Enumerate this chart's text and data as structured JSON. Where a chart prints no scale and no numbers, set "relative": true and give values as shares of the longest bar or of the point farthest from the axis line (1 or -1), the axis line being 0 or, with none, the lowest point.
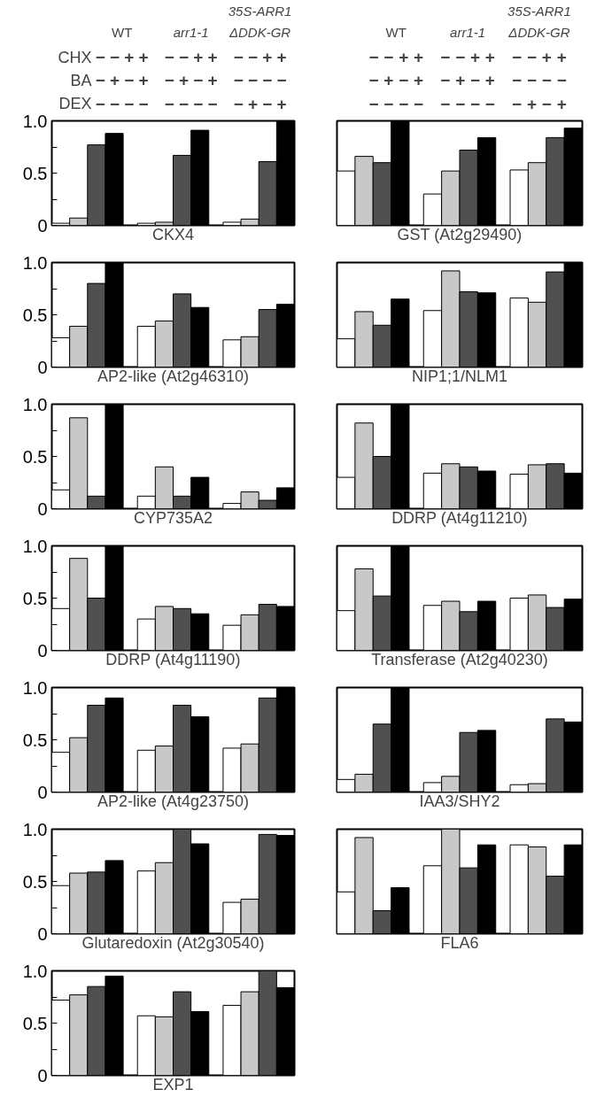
{
  "chart_data": [
    {
      "type": "bar",
      "xlabel": "CKX4",
      "categories": [
        null,
        null,
        null,
        null,
        null,
        null,
        null,
        null,
        null,
        null,
        null,
        null
      ],
      "values": [
        0.02,
        0.07,
        0.77,
        0.88,
        0.02,
        0.03,
        0.67,
        0.91,
        0.03,
        0.06,
        0.61,
        1.0
      ],
      "colors": [
        "#ffffff",
        "#c8c8c8",
        "#505050",
        "#000000",
        "#ffffff",
        "#c8c8c8",
        "#505050",
        "#000000",
        "#ffffff",
        "#c8c8c8",
        "#505050",
        "#000000"
      ],
      "ylim": [
        0,
        1
      ],
      "yticks": [
        0,
        {
          "value": 0.25,
          "label": null
        },
        0.5,
        {
          "value": 0.75,
          "label": null
        },
        {
          "value": 1,
          "label": "1.0"
        }
      ],
      "tick_labels": "y",
      "grid": false,
      "annotations": [
        "WT",
        "arr1-1",
        "35S-ARR1",
        "ΔDDK-GR",
        "CHX",
        "BA",
        "DEX",
        "− − + + − − + + − − + +",
        "− + − + − + − + − − − −",
        "− − − − − − − − − + − +"
      ]
    },
    {
      "type": "bar",
      "xlabel": "GST (At2g29490)",
      "categories": [
        null,
        null,
        null,
        null,
        null,
        null,
        null,
        null,
        null,
        null,
        null,
        null
      ],
      "values": [
        0.52,
        0.66,
        0.6,
        1.0,
        0.3,
        0.52,
        0.72,
        0.84,
        0.53,
        0.6,
        0.84,
        0.93
      ],
      "colors": [
        "#ffffff",
        "#c8c8c8",
        "#505050",
        "#000000",
        "#ffffff",
        "#c8c8c8",
        "#505050",
        "#000000",
        "#ffffff",
        "#c8c8c8",
        "#505050",
        "#000000"
      ],
      "relative": true,
      "tick_labels": false,
      "grid": false,
      "annotations": [
        "WT",
        "arr1-1",
        "35S-ARR1",
        "ΔDDK-GR",
        "− − + + − − + + − − + +",
        "− + − + − + − + − − − −",
        "− − − − − − − − − + − +"
      ]
    },
    {
      "type": "bar",
      "xlabel": "AP2-like (At2g46310)",
      "categories": [
        null,
        null,
        null,
        null,
        null,
        null,
        null,
        null,
        null,
        null,
        null,
        null
      ],
      "values": [
        0.28,
        0.39,
        0.8,
        1.0,
        0.39,
        0.44,
        0.7,
        0.57,
        0.26,
        0.29,
        0.55,
        0.6
      ],
      "colors": [
        "#ffffff",
        "#c8c8c8",
        "#505050",
        "#000000",
        "#ffffff",
        "#c8c8c8",
        "#505050",
        "#000000",
        "#ffffff",
        "#c8c8c8",
        "#505050",
        "#000000"
      ],
      "ylim": [
        0,
        1
      ],
      "yticks": [
        0,
        {
          "value": 0.25,
          "label": null
        },
        0.5,
        {
          "value": 0.75,
          "label": null
        },
        {
          "value": 1,
          "label": "1.0"
        }
      ],
      "tick_labels": "y",
      "grid": false
    },
    {
      "type": "bar",
      "xlabel": "NIP1;1/NLM1",
      "categories": [
        null,
        null,
        null,
        null,
        null,
        null,
        null,
        null,
        null,
        null,
        null,
        null
      ],
      "values": [
        0.27,
        0.53,
        0.4,
        0.65,
        0.54,
        0.92,
        0.72,
        0.71,
        0.66,
        0.62,
        0.91,
        1.0
      ],
      "colors": [
        "#ffffff",
        "#c8c8c8",
        "#505050",
        "#000000",
        "#ffffff",
        "#c8c8c8",
        "#505050",
        "#000000",
        "#ffffff",
        "#c8c8c8",
        "#505050",
        "#000000"
      ],
      "relative": true,
      "tick_labels": false,
      "grid": false
    },
    {
      "type": "bar",
      "xlabel": "CYP735A2",
      "categories": [
        null,
        null,
        null,
        null,
        null,
        null,
        null,
        null,
        null,
        null,
        null,
        null
      ],
      "values": [
        0.18,
        0.87,
        0.12,
        1.0,
        0.12,
        0.4,
        0.12,
        0.3,
        0.05,
        0.16,
        0.08,
        0.2
      ],
      "colors": [
        "#ffffff",
        "#c8c8c8",
        "#505050",
        "#000000",
        "#ffffff",
        "#c8c8c8",
        "#505050",
        "#000000",
        "#ffffff",
        "#c8c8c8",
        "#505050",
        "#000000"
      ],
      "ylim": [
        0,
        1
      ],
      "yticks": [
        0,
        {
          "value": 0.25,
          "label": null
        },
        0.5,
        {
          "value": 0.75,
          "label": null
        },
        {
          "value": 1,
          "label": "1.0"
        }
      ],
      "tick_labels": "y",
      "grid": false
    },
    {
      "type": "bar",
      "xlabel": "DDRP (At4g11210)",
      "categories": [
        null,
        null,
        null,
        null,
        null,
        null,
        null,
        null,
        null,
        null,
        null,
        null
      ],
      "values": [
        0.3,
        0.82,
        0.5,
        1.0,
        0.34,
        0.43,
        0.4,
        0.36,
        0.33,
        0.42,
        0.43,
        0.34
      ],
      "colors": [
        "#ffffff",
        "#c8c8c8",
        "#505050",
        "#000000",
        "#ffffff",
        "#c8c8c8",
        "#505050",
        "#000000",
        "#ffffff",
        "#c8c8c8",
        "#505050",
        "#000000"
      ],
      "relative": true,
      "tick_labels": false,
      "grid": false
    },
    {
      "type": "bar",
      "xlabel": "DDRP (At4g11190)",
      "categories": [
        null,
        null,
        null,
        null,
        null,
        null,
        null,
        null,
        null,
        null,
        null,
        null
      ],
      "values": [
        0.4,
        0.88,
        0.5,
        1.0,
        0.3,
        0.42,
        0.4,
        0.35,
        0.24,
        0.34,
        0.44,
        0.42
      ],
      "colors": [
        "#ffffff",
        "#c8c8c8",
        "#505050",
        "#000000",
        "#ffffff",
        "#c8c8c8",
        "#505050",
        "#000000",
        "#ffffff",
        "#c8c8c8",
        "#505050",
        "#000000"
      ],
      "ylim": [
        0,
        1
      ],
      "yticks": [
        0,
        {
          "value": 0.25,
          "label": null
        },
        0.5,
        {
          "value": 0.75,
          "label": null
        },
        {
          "value": 1,
          "label": "1.0"
        }
      ],
      "tick_labels": "y",
      "grid": false
    },
    {
      "type": "bar",
      "xlabel": "Transferase (At2g40230)",
      "categories": [
        null,
        null,
        null,
        null,
        null,
        null,
        null,
        null,
        null,
        null,
        null,
        null
      ],
      "values": [
        0.38,
        0.78,
        0.52,
        1.0,
        0.43,
        0.47,
        0.37,
        0.47,
        0.5,
        0.53,
        0.41,
        0.49
      ],
      "colors": [
        "#ffffff",
        "#c8c8c8",
        "#505050",
        "#000000",
        "#ffffff",
        "#c8c8c8",
        "#505050",
        "#000000",
        "#ffffff",
        "#c8c8c8",
        "#505050",
        "#000000"
      ],
      "relative": true,
      "tick_labels": false,
      "grid": false
    },
    {
      "type": "bar",
      "xlabel": "AP2-like (At4g23750)",
      "categories": [
        null,
        null,
        null,
        null,
        null,
        null,
        null,
        null,
        null,
        null,
        null,
        null
      ],
      "values": [
        0.38,
        0.52,
        0.83,
        0.9,
        0.4,
        0.44,
        0.83,
        0.72,
        0.42,
        0.46,
        0.9,
        1.0
      ],
      "colors": [
        "#ffffff",
        "#c8c8c8",
        "#505050",
        "#000000",
        "#ffffff",
        "#c8c8c8",
        "#505050",
        "#000000",
        "#ffffff",
        "#c8c8c8",
        "#505050",
        "#000000"
      ],
      "ylim": [
        0,
        1
      ],
      "yticks": [
        0,
        {
          "value": 0.25,
          "label": null
        },
        0.5,
        {
          "value": 0.75,
          "label": null
        },
        {
          "value": 1,
          "label": "1.0"
        }
      ],
      "tick_labels": "y",
      "grid": false
    },
    {
      "type": "bar",
      "xlabel": "IAA3/SHY2",
      "categories": [
        null,
        null,
        null,
        null,
        null,
        null,
        null,
        null,
        null,
        null,
        null,
        null
      ],
      "values": [
        0.12,
        0.17,
        0.65,
        1.0,
        0.09,
        0.15,
        0.57,
        0.59,
        0.07,
        0.08,
        0.7,
        0.67
      ],
      "colors": [
        "#ffffff",
        "#c8c8c8",
        "#505050",
        "#000000",
        "#ffffff",
        "#c8c8c8",
        "#505050",
        "#000000",
        "#ffffff",
        "#c8c8c8",
        "#505050",
        "#000000"
      ],
      "relative": true,
      "tick_labels": false,
      "grid": false
    },
    {
      "type": "bar",
      "xlabel": "Glutaredoxin (At2g30540)",
      "categories": [
        null,
        null,
        null,
        null,
        null,
        null,
        null,
        null,
        null,
        null,
        null,
        null
      ],
      "values": [
        0.46,
        0.58,
        0.59,
        0.7,
        0.6,
        0.68,
        1.0,
        0.86,
        0.3,
        0.33,
        0.95,
        0.94
      ],
      "colors": [
        "#ffffff",
        "#c8c8c8",
        "#505050",
        "#000000",
        "#ffffff",
        "#c8c8c8",
        "#505050",
        "#000000",
        "#ffffff",
        "#c8c8c8",
        "#505050",
        "#000000"
      ],
      "ylim": [
        0,
        1
      ],
      "yticks": [
        0,
        {
          "value": 0.25,
          "label": null
        },
        0.5,
        {
          "value": 0.75,
          "label": null
        },
        {
          "value": 1,
          "label": "1.0"
        }
      ],
      "tick_labels": "y",
      "grid": false
    },
    {
      "type": "bar",
      "xlabel": "FLA6",
      "categories": [
        null,
        null,
        null,
        null,
        null,
        null,
        null,
        null,
        null,
        null,
        null,
        null
      ],
      "values": [
        0.4,
        0.92,
        0.22,
        0.44,
        0.65,
        1.0,
        0.63,
        0.85,
        0.85,
        0.83,
        0.55,
        0.85
      ],
      "colors": [
        "#ffffff",
        "#c8c8c8",
        "#505050",
        "#000000",
        "#ffffff",
        "#c8c8c8",
        "#505050",
        "#000000",
        "#ffffff",
        "#c8c8c8",
        "#505050",
        "#000000"
      ],
      "relative": true,
      "tick_labels": false,
      "grid": false
    },
    {
      "type": "bar",
      "xlabel": "EXP1",
      "categories": [
        null,
        null,
        null,
        null,
        null,
        null,
        null,
        null,
        null,
        null,
        null,
        null
      ],
      "values": [
        0.72,
        0.77,
        0.85,
        0.95,
        0.57,
        0.56,
        0.8,
        0.61,
        0.67,
        0.8,
        1.0,
        0.84
      ],
      "colors": [
        "#ffffff",
        "#c8c8c8",
        "#505050",
        "#000000",
        "#ffffff",
        "#c8c8c8",
        "#505050",
        "#000000",
        "#ffffff",
        "#c8c8c8",
        "#505050",
        "#000000"
      ],
      "ylim": [
        0,
        1
      ],
      "yticks": [
        0,
        {
          "value": 0.25,
          "label": null
        },
        0.5,
        {
          "value": 0.75,
          "label": null
        },
        {
          "value": 1,
          "label": "1.0"
        }
      ],
      "tick_labels": "y",
      "grid": false
    }
  ]
}
